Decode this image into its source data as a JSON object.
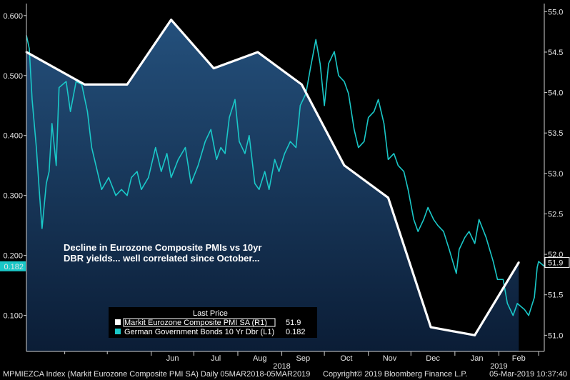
{
  "chart_data": {
    "type": "line",
    "annotation": [
      "Decline in Eurozone Composite PMIs vs 10yr",
      "DBR yields... well correlated since October..."
    ],
    "legend": {
      "title": "Last Price",
      "entries": [
        {
          "label": "Markit Eurozone Composite PMI SA  (R1)",
          "value": "51.9",
          "color": "#ffffff"
        },
        {
          "label": "German Government Bonds 10 Yr Dbr  (L1)",
          "value": "0.182",
          "color": "#1ac8c8"
        }
      ]
    },
    "x_labels": [
      "Jun",
      "Jul",
      "Aug",
      "Sep",
      "Oct",
      "Nov",
      "Dec",
      "Jan",
      "Feb"
    ],
    "year_labels": [
      "2018",
      "2019"
    ],
    "left_axis": {
      "ticks": [
        "0.600",
        "0.500",
        "0.400",
        "0.300",
        "0.200",
        "0.100"
      ],
      "min": 0.04,
      "max": 0.62,
      "last_value_label": "0.182"
    },
    "right_axis": {
      "ticks": [
        "55.0",
        "54.5",
        "54.0",
        "53.5",
        "53.0",
        "52.5",
        "52.0",
        "51.5",
        "51.0"
      ],
      "min": 50.8,
      "max": 55.1,
      "last_value_label": "51.9"
    },
    "series": [
      {
        "name": "Markit Eurozone Composite PMI SA (R1)",
        "axis": "right",
        "color": "#ffffff",
        "points": [
          {
            "date": "2018-03-05",
            "value": 54.5
          },
          {
            "date": "2018-04-15",
            "value": 54.1
          },
          {
            "date": "2018-05-15",
            "value": 54.1
          },
          {
            "date": "2018-06-15",
            "value": 54.9
          },
          {
            "date": "2018-07-15",
            "value": 54.3
          },
          {
            "date": "2018-08-15",
            "value": 54.5
          },
          {
            "date": "2018-09-15",
            "value": 54.1
          },
          {
            "date": "2018-10-15",
            "value": 53.1
          },
          {
            "date": "2018-11-15",
            "value": 52.7
          },
          {
            "date": "2018-12-15",
            "value": 51.1
          },
          {
            "date": "2019-01-15",
            "value": 51.0
          },
          {
            "date": "2019-02-15",
            "value": 51.9
          }
        ]
      },
      {
        "name": "German Government Bonds 10 Yr Dbr (L1)",
        "axis": "left",
        "color": "#1ac8c8",
        "points": [
          {
            "date": "2018-03-05",
            "value": 0.567
          },
          {
            "date": "2018-03-07",
            "value": 0.545
          },
          {
            "date": "2018-03-09",
            "value": 0.46
          },
          {
            "date": "2018-03-12",
            "value": 0.38
          },
          {
            "date": "2018-03-14",
            "value": 0.31
          },
          {
            "date": "2018-03-16",
            "value": 0.245
          },
          {
            "date": "2018-03-19",
            "value": 0.32
          },
          {
            "date": "2018-03-21",
            "value": 0.34
          },
          {
            "date": "2018-03-23",
            "value": 0.42
          },
          {
            "date": "2018-03-26",
            "value": 0.35
          },
          {
            "date": "2018-03-28",
            "value": 0.48
          },
          {
            "date": "2018-04-02",
            "value": 0.49
          },
          {
            "date": "2018-04-05",
            "value": 0.44
          },
          {
            "date": "2018-04-09",
            "value": 0.49
          },
          {
            "date": "2018-04-13",
            "value": 0.485
          },
          {
            "date": "2018-04-17",
            "value": 0.44
          },
          {
            "date": "2018-04-20",
            "value": 0.38
          },
          {
            "date": "2018-04-24",
            "value": 0.34
          },
          {
            "date": "2018-04-27",
            "value": 0.31
          },
          {
            "date": "2018-05-02",
            "value": 0.33
          },
          {
            "date": "2018-05-07",
            "value": 0.3
          },
          {
            "date": "2018-05-11",
            "value": 0.31
          },
          {
            "date": "2018-05-15",
            "value": 0.3
          },
          {
            "date": "2018-05-18",
            "value": 0.33
          },
          {
            "date": "2018-05-22",
            "value": 0.34
          },
          {
            "date": "2018-05-25",
            "value": 0.31
          },
          {
            "date": "2018-05-30",
            "value": 0.33
          },
          {
            "date": "2018-06-04",
            "value": 0.38
          },
          {
            "date": "2018-06-08",
            "value": 0.34
          },
          {
            "date": "2018-06-12",
            "value": 0.37
          },
          {
            "date": "2018-06-15",
            "value": 0.33
          },
          {
            "date": "2018-06-20",
            "value": 0.36
          },
          {
            "date": "2018-06-25",
            "value": 0.38
          },
          {
            "date": "2018-06-29",
            "value": 0.32
          },
          {
            "date": "2018-07-04",
            "value": 0.35
          },
          {
            "date": "2018-07-09",
            "value": 0.39
          },
          {
            "date": "2018-07-13",
            "value": 0.41
          },
          {
            "date": "2018-07-17",
            "value": 0.36
          },
          {
            "date": "2018-07-20",
            "value": 0.38
          },
          {
            "date": "2018-07-23",
            "value": 0.37
          },
          {
            "date": "2018-07-26",
            "value": 0.43
          },
          {
            "date": "2018-07-30",
            "value": 0.46
          },
          {
            "date": "2018-08-02",
            "value": 0.39
          },
          {
            "date": "2018-08-06",
            "value": 0.37
          },
          {
            "date": "2018-08-09",
            "value": 0.4
          },
          {
            "date": "2018-08-13",
            "value": 0.32
          },
          {
            "date": "2018-08-16",
            "value": 0.31
          },
          {
            "date": "2018-08-20",
            "value": 0.34
          },
          {
            "date": "2018-08-23",
            "value": 0.31
          },
          {
            "date": "2018-08-27",
            "value": 0.36
          },
          {
            "date": "2018-08-30",
            "value": 0.34
          },
          {
            "date": "2018-09-03",
            "value": 0.37
          },
          {
            "date": "2018-09-07",
            "value": 0.39
          },
          {
            "date": "2018-09-11",
            "value": 0.38
          },
          {
            "date": "2018-09-14",
            "value": 0.45
          },
          {
            "date": "2018-09-18",
            "value": 0.47
          },
          {
            "date": "2018-09-21",
            "value": 0.51
          },
          {
            "date": "2018-09-25",
            "value": 0.56
          },
          {
            "date": "2018-09-28",
            "value": 0.52
          },
          {
            "date": "2018-10-01",
            "value": 0.45
          },
          {
            "date": "2018-10-04",
            "value": 0.52
          },
          {
            "date": "2018-10-08",
            "value": 0.54
          },
          {
            "date": "2018-10-11",
            "value": 0.5
          },
          {
            "date": "2018-10-15",
            "value": 0.49
          },
          {
            "date": "2018-10-18",
            "value": 0.47
          },
          {
            "date": "2018-10-22",
            "value": 0.41
          },
          {
            "date": "2018-10-25",
            "value": 0.38
          },
          {
            "date": "2018-10-29",
            "value": 0.39
          },
          {
            "date": "2018-11-01",
            "value": 0.43
          },
          {
            "date": "2018-11-05",
            "value": 0.44
          },
          {
            "date": "2018-11-08",
            "value": 0.46
          },
          {
            "date": "2018-11-12",
            "value": 0.42
          },
          {
            "date": "2018-11-15",
            "value": 0.36
          },
          {
            "date": "2018-11-19",
            "value": 0.37
          },
          {
            "date": "2018-11-22",
            "value": 0.35
          },
          {
            "date": "2018-11-26",
            "value": 0.34
          },
          {
            "date": "2018-11-29",
            "value": 0.31
          },
          {
            "date": "2018-12-03",
            "value": 0.26
          },
          {
            "date": "2018-12-06",
            "value": 0.24
          },
          {
            "date": "2018-12-10",
            "value": 0.26
          },
          {
            "date": "2018-12-13",
            "value": 0.28
          },
          {
            "date": "2018-12-17",
            "value": 0.26
          },
          {
            "date": "2018-12-20",
            "value": 0.25
          },
          {
            "date": "2018-12-24",
            "value": 0.24
          },
          {
            "date": "2018-12-28",
            "value": 0.21
          },
          {
            "date": "2019-01-02",
            "value": 0.17
          },
          {
            "date": "2019-01-04",
            "value": 0.21
          },
          {
            "date": "2019-01-08",
            "value": 0.23
          },
          {
            "date": "2019-01-11",
            "value": 0.24
          },
          {
            "date": "2019-01-15",
            "value": 0.22
          },
          {
            "date": "2019-01-18",
            "value": 0.26
          },
          {
            "date": "2019-01-23",
            "value": 0.23
          },
          {
            "date": "2019-01-28",
            "value": 0.19
          },
          {
            "date": "2019-01-31",
            "value": 0.16
          },
          {
            "date": "2019-02-04",
            "value": 0.16
          },
          {
            "date": "2019-02-07",
            "value": 0.12
          },
          {
            "date": "2019-02-11",
            "value": 0.1
          },
          {
            "date": "2019-02-14",
            "value": 0.12
          },
          {
            "date": "2019-02-19",
            "value": 0.11
          },
          {
            "date": "2019-02-22",
            "value": 0.1
          },
          {
            "date": "2019-02-26",
            "value": 0.13
          },
          {
            "date": "2019-02-28",
            "value": 0.18
          },
          {
            "date": "2019-03-01",
            "value": 0.19
          },
          {
            "date": "2019-03-05",
            "value": 0.182
          }
        ]
      }
    ]
  },
  "footer": {
    "left": "MPMIEZCA Index (Markit Eurozone Composite PMI SA)  Daily 05MAR2018-05MAR2019",
    "copyright": "Copyright© 2019 Bloomberg Finance L.P.",
    "timestamp": "05-Mar-2019 10:37:40"
  },
  "colors": {
    "background": "#000000",
    "area_top": "#1c3f63",
    "area_bottom": "#0a1c33",
    "pmi_line": "#ffffff",
    "yield_line": "#1ac8c8"
  }
}
